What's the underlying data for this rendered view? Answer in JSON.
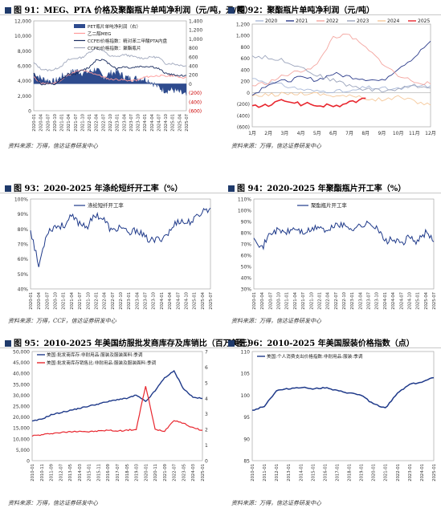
{
  "source_label": "资料来源：万得，信达证券研发中心",
  "source_label_ccf": "资料来源：万得，CCF，信达证券研发中心",
  "panels": [
    {
      "fig": "图 91：",
      "title": "MEG、PTA 价格及聚酯瓶片单吨净利润（元/吨，元/吨）"
    },
    {
      "fig": "图 92：",
      "title": "聚酯瓶片单吨净利润（元/吨）"
    },
    {
      "fig": "图 93：",
      "title": "2020-2025 年涤纶短纤开工率（%）"
    },
    {
      "fig": "图 94：",
      "title": "2020-2025 年聚酯瓶片开工率（%）"
    },
    {
      "fig": "图 95：",
      "title": "2010-2025 年美国纺服批发商库存及库销比（百万美元）"
    },
    {
      "fig": "图 96：",
      "title": "2010-2025 年美国服装价格指数（点）"
    }
  ],
  "chart_data": [
    {
      "type": "line",
      "x": [
        "2020-01",
        "2020-04",
        "2020-07",
        "2020-10",
        "2021-01",
        "2021-04",
        "2021-07",
        "2021-10",
        "2022-01",
        "2022-04",
        "2022-07",
        "2022-10",
        "2023-01",
        "2023-04",
        "2023-07",
        "2023-10",
        "2024-01",
        "2024-04",
        "2024-07",
        "2024-10",
        "2025-01",
        "2025-04",
        "2025-07"
      ],
      "ylim_left": [
        0,
        12000
      ],
      "yticks_left": [
        "0",
        "2,000",
        "4,000",
        "6,000",
        "8,000",
        "10,000",
        "12,000"
      ],
      "ylim_right": [
        -600,
        1400
      ],
      "yticks_right": [
        "(600)",
        "(400)",
        "(200)",
        "0",
        "200",
        "400",
        "600",
        "800",
        "1,000",
        "1,200",
        "1,400"
      ],
      "colors": {
        "profit": "#2e4b8e",
        "meg": "#ff9a9a",
        "pta": "#1a2c5e",
        "fiber": "#a0a8bd"
      },
      "series": [
        {
          "name": "PET瓶片单吨净利润（右）",
          "axis": "right",
          "values": [
            240,
            120,
            80,
            40,
            160,
            210,
            300,
            240,
            260,
            330,
            150,
            230,
            270,
            160,
            110,
            120,
            110,
            40,
            -80,
            -150,
            -130,
            -190,
            -260
          ]
        },
        {
          "name": "乙二醇MEG",
          "axis": "left",
          "values": [
            4500,
            3700,
            3600,
            3700,
            4100,
            4800,
            5200,
            5400,
            5100,
            4900,
            4500,
            4200,
            4200,
            4100,
            4000,
            4100,
            4500,
            4600,
            4700,
            4600,
            4700,
            4500,
            4400
          ]
        },
        {
          "name": "CCFEI价格指数：精对苯二甲酸PTA内盘",
          "axis": "left",
          "values": [
            5000,
            3500,
            3600,
            3500,
            4100,
            4900,
            4900,
            5400,
            5800,
            6800,
            6800,
            6200,
            5600,
            5900,
            5700,
            5900,
            5900,
            5900,
            5600,
            5000,
            4800,
            4700,
            4700
          ]
        },
        {
          "name": "CCFEI价格指数：聚酯瓶片",
          "axis": "left",
          "values": [
            6400,
            5600,
            5400,
            5500,
            6000,
            6800,
            7000,
            7100,
            7800,
            8400,
            8000,
            7300,
            7200,
            7500,
            7300,
            7100,
            7000,
            7200,
            7100,
            6300,
            6300,
            6100,
            6000
          ]
        }
      ]
    },
    {
      "type": "line",
      "categories": [
        "1月",
        "2月",
        "3月",
        "4月",
        "5月",
        "6月",
        "7月",
        "8月",
        "9月",
        "10月",
        "11月",
        "12月"
      ],
      "ylim": [
        -600,
        1200
      ],
      "yticks": [
        "(600)",
        "(400)",
        "(200)",
        "0",
        "200",
        "400",
        "600",
        "800",
        "1,000",
        "1,200"
      ],
      "legend": "top",
      "series": [
        {
          "name": "2020",
          "color": "#a8b8d8",
          "values": [
            250,
            180,
            120,
            60,
            20,
            30,
            10,
            90,
            70,
            60,
            110,
            120
          ]
        },
        {
          "name": "2021",
          "color": "#2a3a8a",
          "values": [
            -50,
            160,
            200,
            260,
            220,
            330,
            280,
            240,
            200,
            430,
            620,
            900
          ]
        },
        {
          "name": "2022",
          "color": "#f4a6a0",
          "values": [
            120,
            180,
            300,
            380,
            480,
            980,
            1000,
            780,
            530,
            290,
            200,
            150
          ]
        },
        {
          "name": "2023",
          "color": "#9aa3bb",
          "values": [
            640,
            610,
            560,
            450,
            300,
            220,
            120,
            60,
            30,
            60,
            120,
            80
          ]
        },
        {
          "name": "2024",
          "color": "#f5c89a",
          "values": [
            -70,
            -40,
            -20,
            -10,
            -20,
            -50,
            -60,
            -100,
            -130,
            -80,
            -150,
            -220
          ]
        },
        {
          "name": "2025",
          "color": "#e8262e",
          "values": [
            -240,
            -230,
            -130,
            -200,
            -220,
            -240,
            -180,
            -100,
            null,
            null,
            null,
            null
          ]
        }
      ]
    },
    {
      "type": "line",
      "x": [
        "2020-01",
        "2020-04",
        "2020-07",
        "2020-10",
        "2021-01",
        "2021-04",
        "2021-07",
        "2021-10",
        "2022-01",
        "2022-04",
        "2022-07",
        "2022-10",
        "2023-01",
        "2023-04",
        "2023-07",
        "2023-10",
        "2024-01",
        "2024-04",
        "2024-07",
        "2024-10",
        "2025-01",
        "2025-04",
        "2025-07"
      ],
      "ylim": [
        40,
        100
      ],
      "yticks": [
        "40%",
        "50%",
        "60%",
        "70%",
        "80%",
        "90%",
        "100%"
      ],
      "series": [
        {
          "name": "涤纶短纤开工率",
          "color": "#1f3a8a",
          "values": [
            80,
            55,
            78,
            82,
            82,
            88,
            84,
            82,
            90,
            86,
            78,
            82,
            76,
            80,
            74,
            72,
            74,
            78,
            86,
            84,
            86,
            92,
            94
          ]
        }
      ]
    },
    {
      "type": "line",
      "x": [
        "2020-01",
        "2020-04",
        "2020-07",
        "2020-10",
        "2021-01",
        "2021-04",
        "2021-07",
        "2021-10",
        "2022-01",
        "2022-04",
        "2022-07",
        "2022-10",
        "2023-01",
        "2023-04",
        "2023-07",
        "2023-10",
        "2024-01",
        "2024-04",
        "2024-07",
        "2024-10",
        "2025-01",
        "2025-04",
        "2025-07"
      ],
      "ylim": [
        30,
        110
      ],
      "yticks": [
        "30%",
        "40%",
        "50%",
        "60%",
        "70%",
        "80%",
        "90%",
        "100%",
        "110%"
      ],
      "series": [
        {
          "name": "聚酯瓶片开工率",
          "color": "#1f3a8a",
          "values": [
            78,
            66,
            80,
            82,
            80,
            84,
            80,
            82,
            86,
            80,
            88,
            86,
            84,
            86,
            88,
            86,
            72,
            74,
            70,
            76,
            72,
            80,
            72
          ]
        }
      ]
    },
    {
      "type": "line",
      "x": [
        "2010-01",
        "2010-11",
        "2011-09",
        "2012-07",
        "2013-05",
        "2014-03",
        "2015-01",
        "2015-11",
        "2016-09",
        "2017-07",
        "2018-05",
        "2019-03",
        "2020-01",
        "2020-11",
        "2021-09",
        "2022-07",
        "2023-05",
        "2024-03",
        "2025-01"
      ],
      "ylim_left": [
        0,
        50000
      ],
      "yticks_left": [
        "0",
        "5,000",
        "10,000",
        "15,000",
        "20,000",
        "25,000",
        "30,000",
        "35,000",
        "40,000",
        "45,000",
        "50,000"
      ],
      "ylim_right": [
        0,
        7
      ],
      "yticks_right": [
        "0",
        "1",
        "2",
        "3",
        "4",
        "5",
        "6",
        "7"
      ],
      "series": [
        {
          "name": "美国:批发商库存:非耐用品:服装及服装面料:季调",
          "axis": "left",
          "color": "#1f3a8a",
          "values": [
            18000,
            19000,
            21000,
            22000,
            23000,
            24000,
            25000,
            26000,
            27000,
            28000,
            28500,
            30000,
            27000,
            32000,
            38000,
            41000,
            33000,
            29000,
            28500
          ]
        },
        {
          "name": "美国:批发商库存销售比:非耐用品:服装及服装面料:季调",
          "axis": "right",
          "color": "#e8262e",
          "values": [
            1.6,
            1.65,
            1.75,
            1.8,
            1.85,
            1.9,
            1.85,
            1.9,
            1.95,
            1.9,
            1.95,
            2.0,
            4.8,
            2.0,
            1.9,
            2.6,
            2.4,
            2.1,
            1.95
          ]
        }
      ]
    },
    {
      "type": "line",
      "x": [
        "2010-01",
        "2011-01",
        "2012-01",
        "2013-01",
        "2014-01",
        "2015-01",
        "2016-01",
        "2017-01",
        "2018-01",
        "2019-01",
        "2020-01",
        "2021-01",
        "2022-01",
        "2023-01",
        "2024-01",
        "2025-01"
      ],
      "ylim": [
        85,
        110
      ],
      "yticks": [
        "85",
        "90",
        "95",
        "100",
        "105",
        "110"
      ],
      "series": [
        {
          "name": "美国:个人消费支出价格指数:非耐用品:服装:季调",
          "color": "#1f3a8a",
          "values": [
            96.5,
            97.5,
            101,
            101.5,
            101.8,
            101.5,
            101.7,
            101,
            100.5,
            100,
            98,
            97,
            100.5,
            102.5,
            103,
            104
          ]
        }
      ]
    }
  ]
}
